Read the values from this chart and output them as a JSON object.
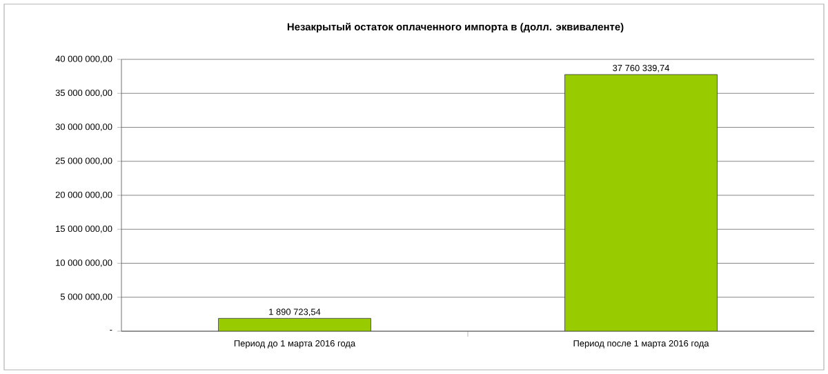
{
  "chart_data": {
    "type": "bar",
    "title": "Незакрытый остаток оплаченного импорта в (долл. эквиваленте)",
    "categories": [
      "Период до 1 марта 2016 года",
      "Период после 1 марта 2016 года"
    ],
    "values": [
      1890723.54,
      37760339.74
    ],
    "value_labels": [
      "1 890 723,54",
      "37 760 339,74"
    ],
    "color": "#99cc00",
    "ylim": [
      0,
      40000000
    ],
    "yticks": [
      {
        "value": 0,
        "label": "-"
      },
      {
        "value": 5000000,
        "label": "5 000 000,00"
      },
      {
        "value": 10000000,
        "label": "10 000 000,00"
      },
      {
        "value": 15000000,
        "label": "15 000 000,00"
      },
      {
        "value": 20000000,
        "label": "20 000 000,00"
      },
      {
        "value": 25000000,
        "label": "25 000 000,00"
      },
      {
        "value": 30000000,
        "label": "30 000 000,00"
      },
      {
        "value": 35000000,
        "label": "35 000 000,00"
      },
      {
        "value": 40000000,
        "label": "40 000 000,00"
      }
    ],
    "grid": "y"
  }
}
